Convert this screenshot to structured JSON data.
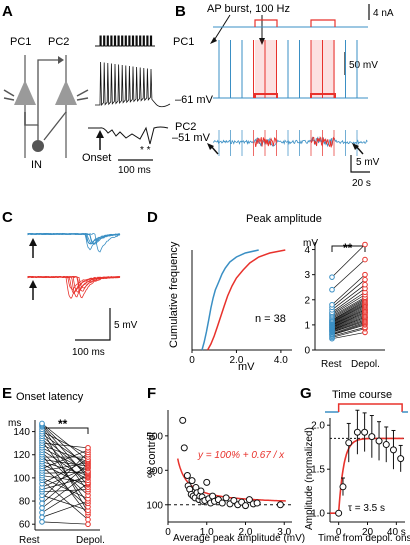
{
  "colors": {
    "blue": "#3a8fc4",
    "red": "#e8322c",
    "black": "#111111",
    "gray": "#9a9a9a",
    "darkgray": "#555555"
  },
  "panels": {
    "A": {
      "letter": "A",
      "labels": {
        "pc1": "PC1",
        "pc2": "PC2",
        "in": "IN",
        "onset": "Onset",
        "scale": "100 ms",
        "asterisks": "* *"
      }
    },
    "B": {
      "letter": "B",
      "labels": {
        "ap_burst": "AP burst, 100 Hz",
        "scale_na": "4 nA",
        "pc1": "PC1",
        "v1": "–61 mV",
        "scale_mv1": "50 mV",
        "pc2": "PC2",
        "v2": "–51 mV",
        "scale_mv2": "5 mV",
        "scale_s": "20 s"
      }
    },
    "C": {
      "letter": "C",
      "labels": {
        "scale_mv": "5 mV",
        "scale_ms": "100 ms"
      }
    },
    "D": {
      "letter": "D",
      "title": "Peak amplitude",
      "ylabel": "Cumulative frequency",
      "xlabel": "mV",
      "n_label": "n = 38",
      "unit": "mV",
      "sig": "**",
      "categories": [
        "Rest",
        "Depol."
      ]
    },
    "E": {
      "letter": "E",
      "title": "Onset latency",
      "unit": "ms",
      "sig": "**",
      "categories": [
        "Rest",
        "Depol."
      ]
    },
    "F": {
      "letter": "F",
      "ylabel": "% control",
      "xlabel": "Average peak amplitude (mV)",
      "equation": "y = 100% + 0.67 / x"
    },
    "G": {
      "letter": "G",
      "title": "Time course",
      "ylabel": "Amplitude (normalized)",
      "xlabel": "Time from depol. onset",
      "tau_label": "τ = 3.5 s"
    }
  },
  "chart_data": [
    {
      "type": "line",
      "panel": "D-left",
      "title": "Peak amplitude",
      "xlabel": "mV",
      "ylabel": "Cumulative frequency",
      "xlim": [
        0,
        4.5
      ],
      "ylim": [
        0,
        1
      ],
      "xticks": [
        0,
        2.0,
        4.0
      ],
      "series": [
        {
          "color": "blue",
          "x": [
            0.45,
            0.55,
            0.65,
            0.75,
            0.85,
            0.95,
            1.05,
            1.2,
            1.35,
            1.5,
            1.7,
            2.0,
            2.4,
            3.0
          ],
          "y": [
            0,
            0.08,
            0.18,
            0.3,
            0.42,
            0.52,
            0.6,
            0.68,
            0.76,
            0.82,
            0.88,
            0.93,
            0.97,
            1.0
          ]
        },
        {
          "color": "red",
          "x": [
            0.7,
            0.85,
            1.0,
            1.15,
            1.3,
            1.45,
            1.6,
            1.8,
            2.0,
            2.3,
            2.6,
            3.0,
            3.5,
            4.2
          ],
          "y": [
            0,
            0.06,
            0.14,
            0.24,
            0.34,
            0.44,
            0.54,
            0.64,
            0.72,
            0.8,
            0.87,
            0.93,
            0.97,
            1.0
          ]
        }
      ],
      "annotation": "n = 38"
    },
    {
      "type": "scatter",
      "panel": "D-right",
      "categories": [
        "Rest",
        "Depol."
      ],
      "ylim": [
        0,
        4.3
      ],
      "yticks": [
        0,
        1,
        2,
        3,
        4
      ],
      "ylabel": "mV",
      "rest": [
        0.45,
        0.5,
        0.55,
        0.6,
        0.62,
        0.65,
        0.7,
        0.72,
        0.75,
        0.78,
        0.8,
        0.82,
        0.85,
        0.88,
        0.9,
        0.92,
        0.95,
        0.98,
        1.0,
        1.02,
        1.05,
        1.08,
        1.1,
        1.12,
        1.15,
        1.18,
        1.2,
        1.25,
        1.3,
        1.35,
        1.4,
        1.45,
        1.5,
        1.6,
        1.7,
        1.8,
        2.4,
        2.9
      ],
      "depol": [
        0.7,
        0.85,
        0.9,
        1.0,
        1.05,
        1.1,
        1.15,
        1.2,
        1.25,
        1.3,
        1.3,
        1.35,
        1.4,
        1.45,
        1.5,
        1.5,
        1.55,
        1.6,
        1.6,
        1.65,
        1.7,
        1.75,
        1.8,
        1.8,
        1.85,
        1.9,
        1.95,
        2.0,
        2.05,
        2.1,
        2.2,
        2.3,
        2.45,
        2.6,
        2.8,
        3.0,
        3.6,
        4.2
      ],
      "significance": "**"
    },
    {
      "type": "scatter",
      "panel": "E",
      "title": "Onset latency",
      "categories": [
        "Rest",
        "Depol."
      ],
      "ylabel": "ms",
      "ylim": [
        55,
        150
      ],
      "yticks": [
        60,
        80,
        100,
        120,
        140
      ],
      "rest": [
        62,
        66,
        70,
        74,
        78,
        82,
        85,
        88,
        90,
        92,
        95,
        98,
        100,
        102,
        104,
        106,
        108,
        110,
        112,
        114,
        116,
        118,
        120,
        122,
        124,
        126,
        128,
        130,
        132,
        134,
        136,
        138,
        140,
        142,
        144,
        145,
        146,
        147
      ],
      "depol": [
        60,
        64,
        68,
        70,
        72,
        75,
        78,
        80,
        82,
        85,
        88,
        90,
        92,
        94,
        95,
        96,
        98,
        100,
        101,
        102,
        103,
        104,
        105,
        106,
        108,
        109,
        110,
        111,
        112,
        113,
        114,
        115,
        116,
        118,
        120,
        122,
        124,
        126
      ],
      "significance": "**"
    },
    {
      "type": "scatter",
      "panel": "F",
      "xlabel": "Average peak amplitude (mV)",
      "ylabel": "% control",
      "xlim": [
        0,
        3.2
      ],
      "ylim": [
        0,
        650
      ],
      "xticks": [
        0,
        1.0,
        2.0,
        3.0
      ],
      "yticks": [
        100,
        300,
        500
      ],
      "x": [
        0.38,
        0.42,
        0.5,
        0.52,
        0.56,
        0.6,
        0.62,
        0.65,
        0.7,
        0.72,
        0.75,
        0.8,
        0.82,
        0.85,
        0.88,
        0.9,
        0.95,
        1.0,
        1.05,
        1.1,
        1.15,
        1.2,
        1.3,
        1.4,
        1.5,
        1.6,
        1.7,
        1.8,
        1.9,
        2.0,
        2.1,
        2.2,
        2.3,
        2.9
      ],
      "y": [
        590,
        430,
        270,
        210,
        190,
        160,
        240,
        150,
        140,
        200,
        170,
        130,
        150,
        180,
        145,
        120,
        125,
        230,
        135,
        110,
        150,
        120,
        130,
        110,
        140,
        105,
        125,
        100,
        115,
        95,
        130,
        105,
        110,
        100
      ],
      "fit": {
        "equation": "y = 100% + 0.67 / x",
        "a": 100,
        "b": 67
      },
      "reference_y": 100
    },
    {
      "type": "line",
      "panel": "G",
      "title": "Time course",
      "xlabel": "Time from depol. onset",
      "ylabel": "Amplitude (normalized)",
      "xlim": [
        -6,
        46
      ],
      "ylim": [
        0.9,
        2.15
      ],
      "xticks": [
        0,
        20,
        40
      ],
      "xunit": "s",
      "yticks": [
        1.0,
        1.5,
        2.0
      ],
      "x": [
        0,
        3,
        7,
        13,
        18,
        23,
        28,
        33,
        38,
        43
      ],
      "y": [
        1.0,
        1.3,
        1.8,
        1.92,
        1.92,
        1.87,
        1.82,
        1.78,
        1.72,
        1.62
      ],
      "err": [
        0.02,
        0.1,
        0.22,
        0.25,
        0.22,
        0.24,
        0.22,
        0.2,
        0.22,
        0.15
      ],
      "fit": {
        "tau": 3.5,
        "baseline": 1.0,
        "plateau": 1.85
      },
      "tau_label": "τ = 3.5 s"
    }
  ]
}
